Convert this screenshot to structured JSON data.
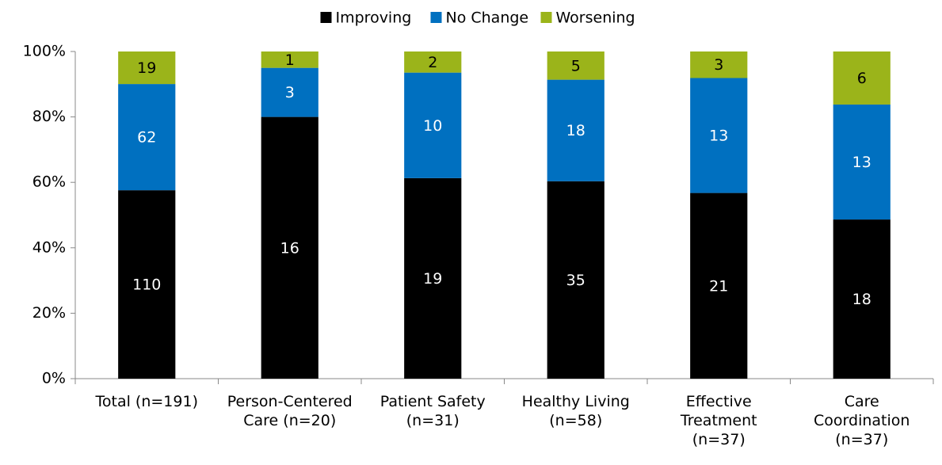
{
  "chart_data": {
    "type": "bar",
    "stacking": "percent",
    "categories": [
      "Total (n=191)",
      "Person-Centered\nCare (n=20)",
      "Patient Safety\n(n=31)",
      "Healthy Living\n(n=58)",
      "Effective\nTreatment\n(n=37)",
      "Care\nCoordination\n(n=37)"
    ],
    "series": [
      {
        "name": "Improving",
        "color": "#000000",
        "label_color": "#ffffff",
        "values": [
          110,
          16,
          19,
          35,
          21,
          18
        ]
      },
      {
        "name": "No Change",
        "color": "#0070c0",
        "label_color": "#ffffff",
        "values": [
          62,
          3,
          10,
          18,
          13,
          13
        ]
      },
      {
        "name": "Worsening",
        "color": "#9bb41a",
        "label_color": "#000000",
        "values": [
          19,
          1,
          2,
          5,
          3,
          6
        ]
      }
    ],
    "ylim": [
      0,
      100
    ],
    "yticks": [
      {
        "value": 0,
        "label": "0%"
      },
      {
        "value": 20,
        "label": "20%"
      },
      {
        "value": 40,
        "label": "40%"
      },
      {
        "value": 60,
        "label": "60%"
      },
      {
        "value": 80,
        "label": "80%"
      },
      {
        "value": 100,
        "label": "100%"
      }
    ],
    "legend": "top"
  }
}
